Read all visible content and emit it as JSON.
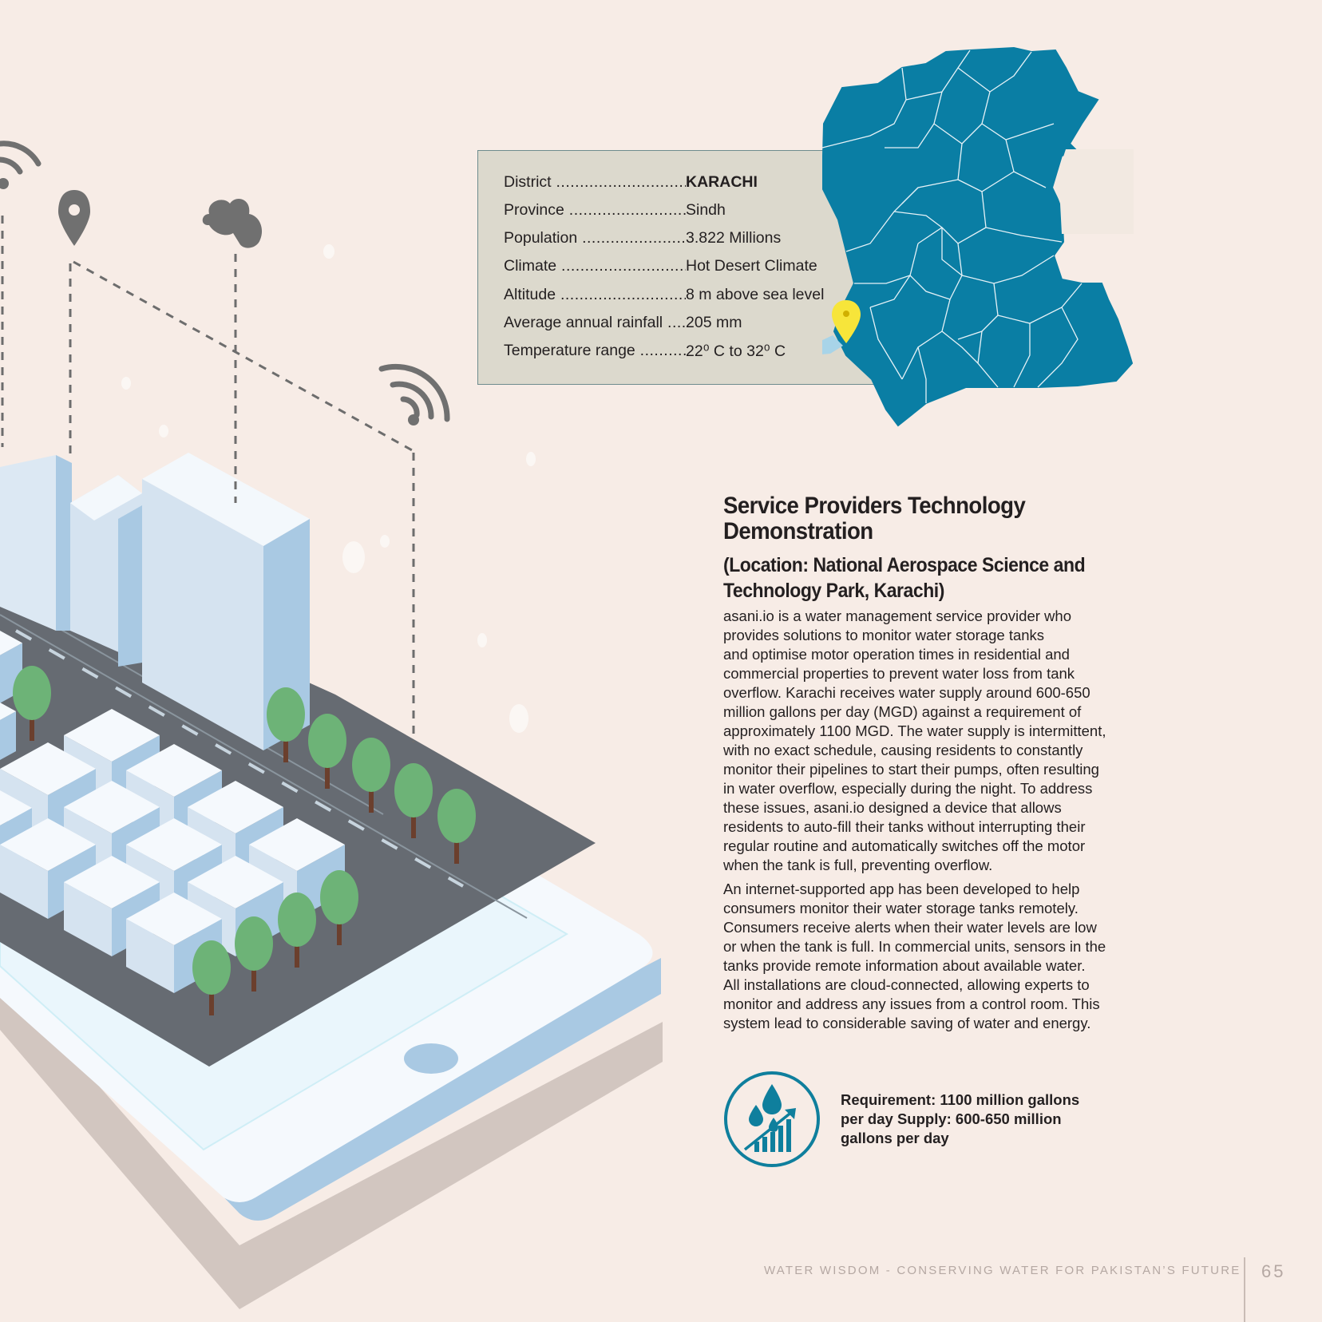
{
  "info_box": {
    "rows": [
      {
        "label": "District",
        "value": "KARACHI"
      },
      {
        "label": "Province",
        "value": "Sindh"
      },
      {
        "label": "Population",
        "value": "3.822 Millions"
      },
      {
        "label": "Climate",
        "value": "Hot Desert Climate"
      },
      {
        "label": "Altitude",
        "value": "8 m above sea level"
      },
      {
        "label": "Average annual rainfall",
        "value": "205 mm"
      },
      {
        "label": "Temperature range",
        "value": "22⁰ C to 32⁰ C"
      }
    ]
  },
  "article": {
    "title": "Service Providers Technology Demonstration",
    "title_lines": [
      "Service Providers Technology",
      "Demonstration"
    ],
    "subtitle_lines": [
      "(Location: National Aerospace Science and",
      "Technology Park, Karachi)"
    ],
    "paragraph1_lines": [
      "asani.io is a water management service provider who",
      "provides solutions to monitor water storage tanks",
      "and optimise motor operation times in residential and",
      "commercial properties to prevent water loss from tank",
      "overflow. Karachi receives water supply around 600-650",
      "million gallons per day (MGD) against a requirement of",
      "approximately 1100 MGD. The water supply is intermittent,",
      "with no exact schedule, causing residents to constantly",
      "monitor their pipelines to start their pumps, often resulting",
      "in water overflow, especially during the night. To address",
      "these issues, asani.io designed a device that allows",
      "residents to auto-fill their tanks without interrupting their",
      "regular routine and automatically switches off the motor",
      "when the tank is full, preventing overflow."
    ],
    "paragraph2_lines": [
      "An internet-supported app has been developed to help",
      "consumers monitor their water storage tanks remotely.",
      "Consumers receive alerts when their water levels are low",
      "or when the tank is full. In commercial units, sensors in the",
      "tanks provide remote information about available water.",
      "All installations are cloud-connected, allowing experts to",
      "monitor and address any issues from a control room. This",
      "system lead to considerable saving of water and energy."
    ]
  },
  "badge": {
    "icon": "water-drops-growth-chart-icon",
    "lines": [
      "Requirement: 1100 million gallons",
      "per day Supply: 600-650 million",
      "gallons per day"
    ]
  },
  "footer": {
    "title": "WATER WISDOM - CONSERVING WATER FOR PAKISTAN’S FUTURE",
    "page_number": "65"
  },
  "colors": {
    "background": "#f7ece6",
    "map_fill": "#0a7ea4",
    "accent_teal": "#0f7f9d",
    "info_box_bg": "#dcd9cd",
    "pin_yellow": "#f7e53a",
    "tree_green": "#6db377",
    "road_gray": "#666b72"
  },
  "illustration_icons": [
    "wifi-icon",
    "location-pin-icon",
    "cloud-icon",
    "wifi-icon"
  ]
}
